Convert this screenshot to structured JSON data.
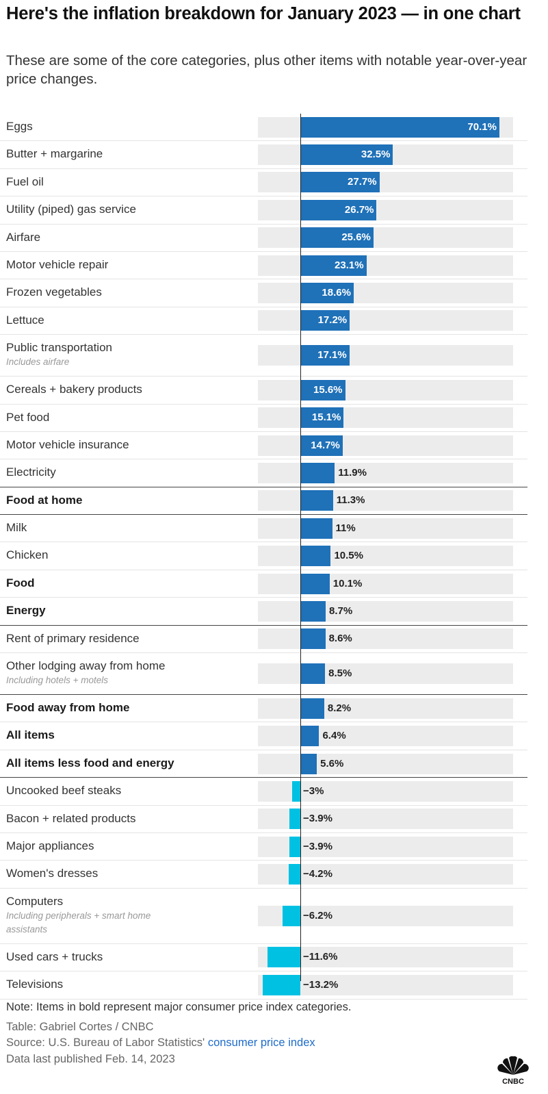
{
  "title": "Here's the inflation breakdown for January 2023 — in one chart",
  "subtitle": "These are some of the core categories, plus other items with notable year-over-year price changes.",
  "colors": {
    "positive": "#1f71b8",
    "negative": "#00c1e2",
    "track": "#ececec",
    "link": "#1e6cc9"
  },
  "chart_data": {
    "type": "bar",
    "orientation": "horizontal",
    "unit": "%",
    "xlim": [
      -13.2,
      70.1
    ],
    "rows": [
      {
        "label": "Eggs",
        "value": 70.1,
        "display": "70.1%",
        "bold": false,
        "note": ""
      },
      {
        "label": "Butter + margarine",
        "value": 32.5,
        "display": "32.5%",
        "bold": false,
        "note": ""
      },
      {
        "label": "Fuel oil",
        "value": 27.7,
        "display": "27.7%",
        "bold": false,
        "note": ""
      },
      {
        "label": "Utility (piped) gas service",
        "value": 26.7,
        "display": "26.7%",
        "bold": false,
        "note": ""
      },
      {
        "label": "Airfare",
        "value": 25.6,
        "display": "25.6%",
        "bold": false,
        "note": ""
      },
      {
        "label": "Motor vehicle repair",
        "value": 23.1,
        "display": "23.1%",
        "bold": false,
        "note": ""
      },
      {
        "label": "Frozen vegetables",
        "value": 18.6,
        "display": "18.6%",
        "bold": false,
        "note": ""
      },
      {
        "label": "Lettuce",
        "value": 17.2,
        "display": "17.2%",
        "bold": false,
        "note": ""
      },
      {
        "label": "Public transportation",
        "value": 17.1,
        "display": "17.1%",
        "bold": false,
        "note": "Includes airfare"
      },
      {
        "label": "Cereals + bakery products",
        "value": 15.6,
        "display": "15.6%",
        "bold": false,
        "note": ""
      },
      {
        "label": "Pet food",
        "value": 15.1,
        "display": "15.1%",
        "bold": false,
        "note": ""
      },
      {
        "label": "Motor vehicle insurance",
        "value": 14.7,
        "display": "14.7%",
        "bold": false,
        "note": ""
      },
      {
        "label": "Electricity",
        "value": 11.9,
        "display": "11.9%",
        "bold": false,
        "note": ""
      },
      {
        "label": "Food at home",
        "value": 11.3,
        "display": "11.3%",
        "bold": true,
        "note": ""
      },
      {
        "label": "Milk",
        "value": 11,
        "display": "11%",
        "bold": false,
        "note": ""
      },
      {
        "label": "Chicken",
        "value": 10.5,
        "display": "10.5%",
        "bold": false,
        "note": ""
      },
      {
        "label": "Food",
        "value": 10.1,
        "display": "10.1%",
        "bold": true,
        "note": ""
      },
      {
        "label": "Energy",
        "value": 8.7,
        "display": "8.7%",
        "bold": true,
        "note": ""
      },
      {
        "label": "Rent of primary residence",
        "value": 8.6,
        "display": "8.6%",
        "bold": false,
        "note": ""
      },
      {
        "label": "Other lodging away from home",
        "value": 8.5,
        "display": "8.5%",
        "bold": false,
        "note": "Including hotels + motels"
      },
      {
        "label": "Food away from home",
        "value": 8.2,
        "display": "8.2%",
        "bold": true,
        "note": ""
      },
      {
        "label": "All items",
        "value": 6.4,
        "display": "6.4%",
        "bold": true,
        "note": ""
      },
      {
        "label": "All items less food and energy",
        "value": 5.6,
        "display": "5.6%",
        "bold": true,
        "note": ""
      },
      {
        "label": "Uncooked beef steaks",
        "value": -3,
        "display": "−3%",
        "bold": false,
        "note": ""
      },
      {
        "label": "Bacon + related products",
        "value": -3.9,
        "display": "−3.9%",
        "bold": false,
        "note": ""
      },
      {
        "label": "Major appliances",
        "value": -3.9,
        "display": "−3.9%",
        "bold": false,
        "note": ""
      },
      {
        "label": "Women's dresses",
        "value": -4.2,
        "display": "−4.2%",
        "bold": false,
        "note": ""
      },
      {
        "label": "Computers",
        "value": -6.2,
        "display": "−6.2%",
        "bold": false,
        "note": "Including peripherals + smart home assistants"
      },
      {
        "label": "Used cars + trucks",
        "value": -11.6,
        "display": "−11.6%",
        "bold": false,
        "note": ""
      },
      {
        "label": "Televisions",
        "value": -13.2,
        "display": "−13.2%",
        "bold": false,
        "note": ""
      }
    ]
  },
  "footer": {
    "note": "Note: Items in bold represent major consumer price index categories.",
    "table_credit": "Table: Gabriel Cortes / CNBC",
    "source_prefix": "Source: U.S. Bureau of Labor Statistics'",
    "source_link": "consumer price index",
    "published": "Data last published Feb. 14, 2023"
  },
  "logo_text": "CNBC"
}
